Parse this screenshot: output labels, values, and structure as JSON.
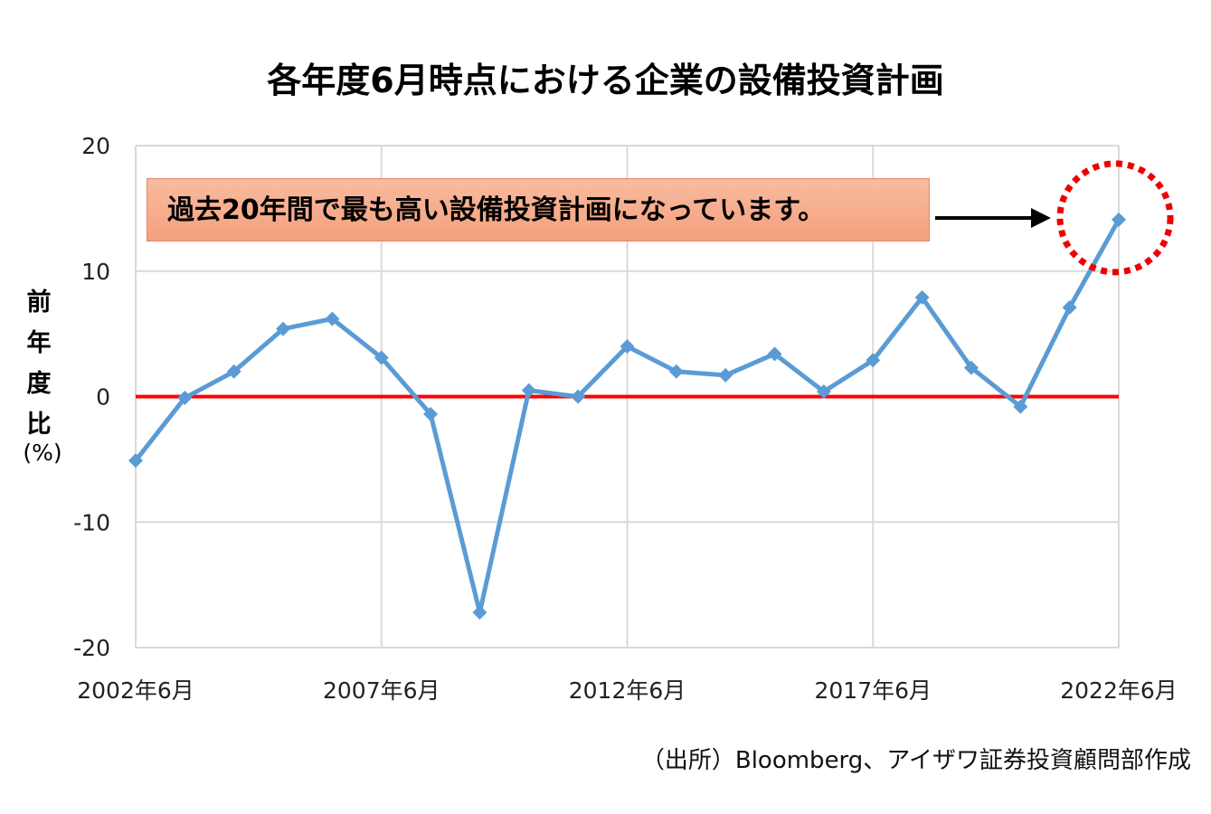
{
  "title": "各年度6月時点における企業の設備投資計画",
  "y_axis_label_chars": [
    "前",
    "年",
    "度",
    "比"
  ],
  "y_axis_unit": "(%)",
  "callout_text": "過去20年間で最も高い設備投資計画になっています。",
  "source_text": "（出所）Bloomberg、アイザワ証券投資顧問部作成",
  "colors": {
    "line": "#5b9bd5",
    "zero_line": "#ff0000",
    "highlight_circle": "#ee0000",
    "grid": "#d9d9d9",
    "arrow": "#000000"
  },
  "chart_data": {
    "type": "line",
    "title": "各年度6月時点における企業の設備投資計画",
    "ylabel": "前年度比(%)",
    "xlabel": "",
    "ylim": [
      -20,
      20
    ],
    "yticks": [
      20,
      10,
      0,
      -10,
      -20
    ],
    "xtick_labels": [
      "2002年6月",
      "2007年6月",
      "2012年6月",
      "2017年6月",
      "2022年6月"
    ],
    "grid": true,
    "x": [
      "2002年6月",
      "2003年6月",
      "2004年6月",
      "2005年6月",
      "2006年6月",
      "2007年6月",
      "2008年6月",
      "2009年6月",
      "2010年6月",
      "2011年6月",
      "2012年6月",
      "2013年6月",
      "2014年6月",
      "2015年6月",
      "2016年6月",
      "2017年6月",
      "2018年6月",
      "2019年6月",
      "2020年6月",
      "2021年6月",
      "2022年6月"
    ],
    "series": [
      {
        "values": [
          -5.1,
          -0.1,
          2.0,
          5.4,
          6.2,
          3.1,
          -1.4,
          -17.2,
          0.5,
          0.0,
          4.0,
          2.0,
          1.7,
          3.4,
          0.4,
          2.9,
          7.9,
          2.3,
          -0.8,
          7.1,
          14.1
        ]
      }
    ],
    "reference_line_y": 0,
    "highlight": "2022年6月"
  }
}
